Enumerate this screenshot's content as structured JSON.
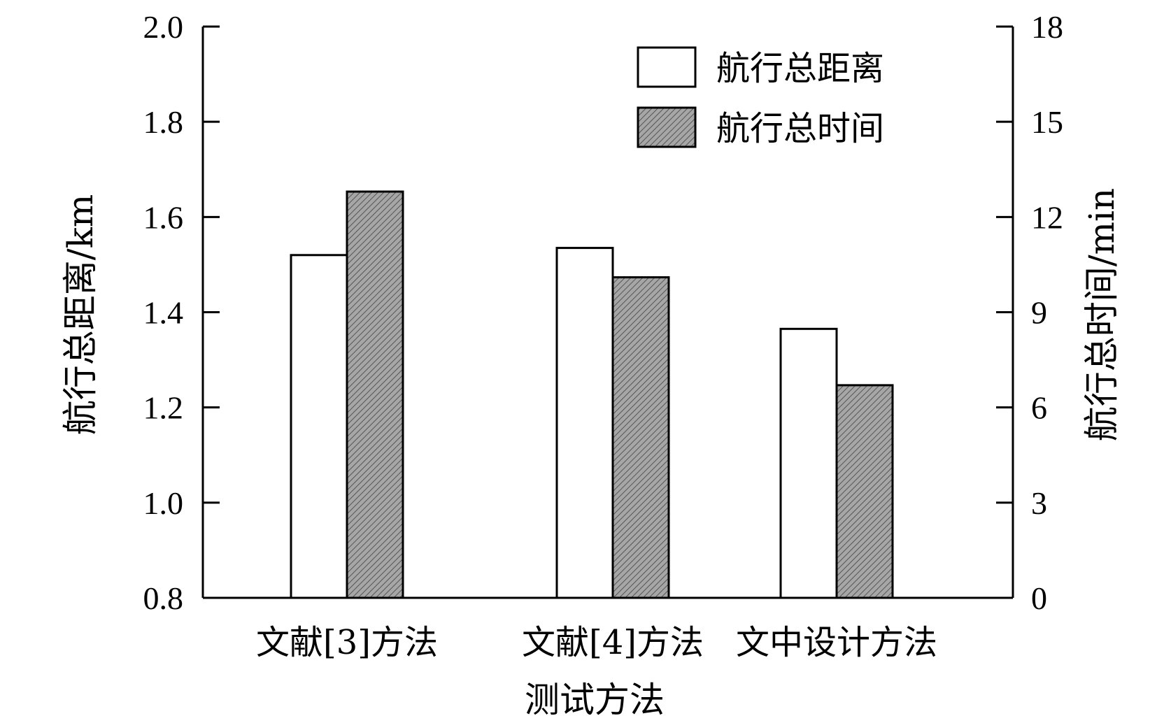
{
  "chart_data": {
    "type": "bar",
    "categories": [
      "文献[3]方法",
      "文献[4]方法",
      "文中设计方法"
    ],
    "series": [
      {
        "name": "航行总距离",
        "axis": "left",
        "values": [
          1.52,
          1.535,
          1.365
        ],
        "fill": "#ffffff",
        "pattern": "none"
      },
      {
        "name": "航行总时间",
        "axis": "right",
        "values": [
          12.8,
          10.1,
          6.7
        ],
        "fill": "#a6a6a6",
        "pattern": "diagonal-hatch"
      }
    ],
    "xlabel": "测试方法",
    "ylabel": "航行总距离/km",
    "y2label": "航行总时间/min",
    "ylim": [
      0.8,
      2.0
    ],
    "y2lim": [
      0,
      18
    ],
    "yticks": [
      "0.8",
      "1.0",
      "1.2",
      "1.4",
      "1.6",
      "1.8",
      "2.0"
    ],
    "y2ticks": [
      "0",
      "3",
      "6",
      "9",
      "12",
      "15",
      "18"
    ],
    "legend_position": "top-right",
    "grid": false
  }
}
